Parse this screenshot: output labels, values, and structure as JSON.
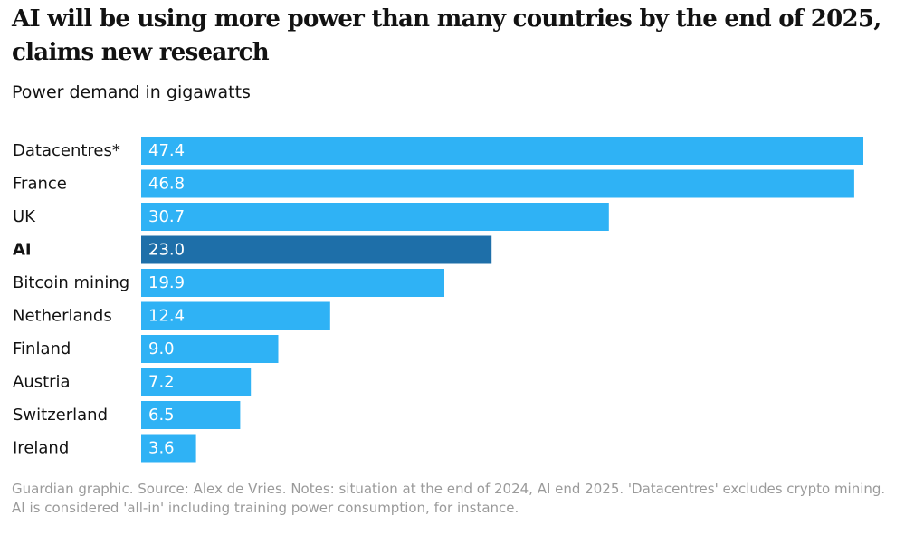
{
  "header": {
    "title": "AI will be using more power than many countries by the end of 2025, claims new research",
    "subtitle": "Power demand in gigawatts"
  },
  "footer": {
    "note": "Guardian graphic. Source: Alex de Vries. Notes: situation at the end of 2024, AI end 2025. 'Datacentres' excludes crypto mining. AI is considered 'all-in' including training power consumption, for instance."
  },
  "colors": {
    "bar": "#2fb2f5",
    "highlight_bar": "#1e6fa9",
    "bar_label": "#ffffff",
    "category_label": "#121212",
    "footer_text": "#9a9a9a"
  },
  "chart_data": {
    "type": "bar",
    "orientation": "horizontal",
    "title": "AI will be using more power than many countries by the end of 2025, claims new research",
    "subtitle": "Power demand in gigawatts",
    "categories": [
      "Datacentres*",
      "France",
      "UK",
      "AI",
      "Bitcoin mining",
      "Netherlands",
      "Finland",
      "Austria",
      "Switzerland",
      "Ireland"
    ],
    "values": [
      47.4,
      46.8,
      30.7,
      23.0,
      19.9,
      12.4,
      9.0,
      7.2,
      6.5,
      3.6
    ],
    "value_labels": [
      "47.4",
      "46.8",
      "30.7",
      "23.0",
      "19.9",
      "12.4",
      "9.0",
      "7.2",
      "6.5",
      "3.6"
    ],
    "highlight": [
      "AI"
    ],
    "xlim": [
      0,
      47.4
    ],
    "grid": false,
    "legend": "none"
  }
}
